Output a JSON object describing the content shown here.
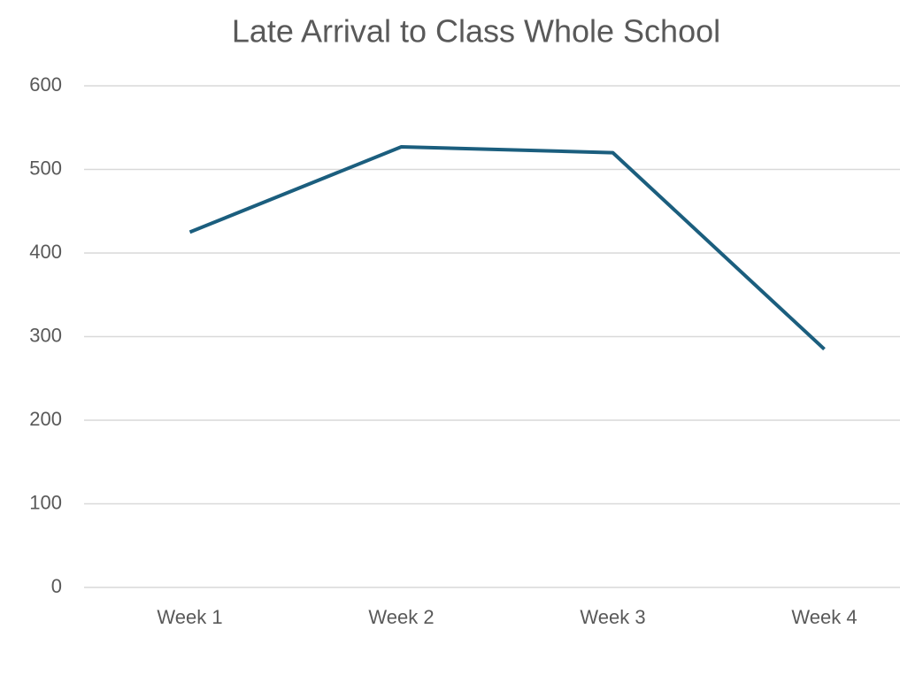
{
  "chart_data": {
    "type": "line",
    "title": "Late Arrival to Class Whole School",
    "categories": [
      "Week 1",
      "Week 2",
      "Week 3",
      "Week 4"
    ],
    "values": [
      425,
      527,
      520,
      285
    ],
    "color": "#1b5e7e",
    "ylim": [
      0,
      600
    ],
    "yticks": [
      0,
      100,
      200,
      300,
      400,
      500,
      600
    ],
    "grid": true
  }
}
